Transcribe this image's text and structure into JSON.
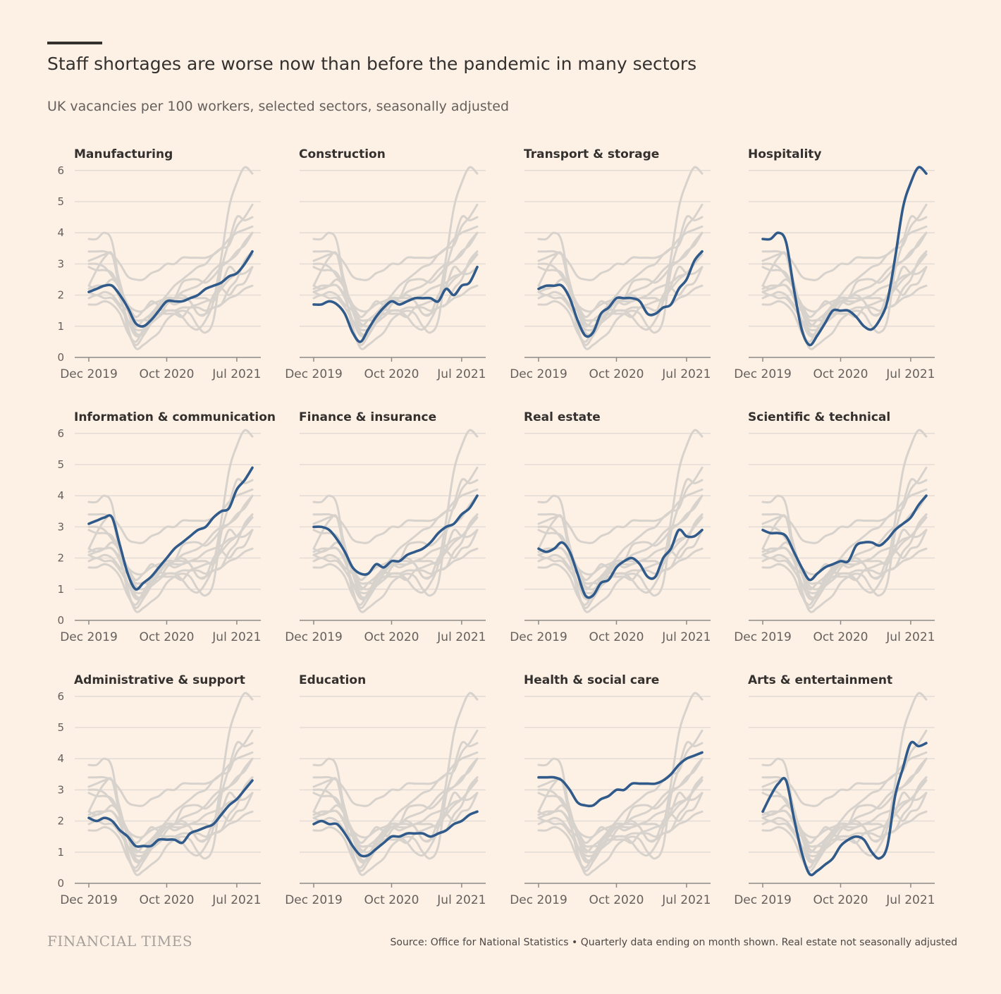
{
  "header": {
    "title": "Staff shortages are worse now than before the pandemic in many sectors",
    "subtitle": "UK vacancies per 100 workers, selected sectors, seasonally adjusted"
  },
  "footer": {
    "brand": "FINANCIAL TIMES",
    "source": "Source: Office for National Statistics • Quarterly data ending on month shown. Real estate not seasonally adjusted"
  },
  "colors": {
    "background": "#fdf1e6",
    "highlight": "#2f5a8a",
    "context": "#d8d2cd",
    "grid": "#e3dcd6",
    "axis": "#8f8a86"
  },
  "chart_data": {
    "type": "line",
    "layout": "small-multiples",
    "ylim": [
      0,
      6
    ],
    "yticks": [
      0,
      1,
      2,
      3,
      4,
      5,
      6
    ],
    "xlim": [
      0,
      21
    ],
    "xticks": [
      {
        "label": "Dec 2019",
        "index": 0
      },
      {
        "label": "Oct 2020",
        "index": 10
      },
      {
        "label": "Jul 2021",
        "index": 19
      }
    ],
    "x_note": "Monthly points Dec 2019 to Sep 2021 (index 0 = Dec 2019)",
    "series": [
      {
        "name": "Manufacturing",
        "values": [
          2.1,
          2.2,
          2.3,
          2.3,
          2.0,
          1.6,
          1.1,
          1.0,
          1.2,
          1.5,
          1.8,
          1.8,
          1.8,
          1.9,
          2.0,
          2.2,
          2.3,
          2.4,
          2.6,
          2.7,
          3.0,
          3.4
        ]
      },
      {
        "name": "Construction",
        "values": [
          1.7,
          1.7,
          1.8,
          1.7,
          1.4,
          0.8,
          0.5,
          0.9,
          1.3,
          1.6,
          1.8,
          1.7,
          1.8,
          1.9,
          1.9,
          1.9,
          1.8,
          2.2,
          2.0,
          2.3,
          2.4,
          2.9
        ]
      },
      {
        "name": "Transport & storage",
        "values": [
          2.2,
          2.3,
          2.3,
          2.3,
          1.9,
          1.2,
          0.7,
          0.8,
          1.4,
          1.6,
          1.9,
          1.9,
          1.9,
          1.8,
          1.4,
          1.4,
          1.6,
          1.7,
          2.2,
          2.5,
          3.1,
          3.4
        ]
      },
      {
        "name": "Hospitality",
        "values": [
          3.8,
          3.8,
          4.0,
          3.7,
          2.2,
          0.9,
          0.4,
          0.7,
          1.1,
          1.5,
          1.5,
          1.5,
          1.3,
          1.0,
          0.9,
          1.2,
          1.8,
          3.2,
          4.8,
          5.6,
          6.1,
          5.9
        ]
      },
      {
        "name": "Information & communication",
        "values": [
          3.1,
          3.2,
          3.3,
          3.3,
          2.4,
          1.5,
          1.0,
          1.2,
          1.4,
          1.7,
          2.0,
          2.3,
          2.5,
          2.7,
          2.9,
          3.0,
          3.3,
          3.5,
          3.6,
          4.2,
          4.5,
          4.9
        ]
      },
      {
        "name": "Finance & insurance",
        "values": [
          3.0,
          3.0,
          2.9,
          2.6,
          2.2,
          1.7,
          1.5,
          1.5,
          1.8,
          1.7,
          1.9,
          1.9,
          2.1,
          2.2,
          2.3,
          2.5,
          2.8,
          3.0,
          3.1,
          3.4,
          3.6,
          4.0
        ]
      },
      {
        "name": "Real estate",
        "values": [
          2.3,
          2.2,
          2.3,
          2.5,
          2.2,
          1.5,
          0.8,
          0.8,
          1.2,
          1.3,
          1.7,
          1.9,
          2.0,
          1.8,
          1.4,
          1.4,
          2.0,
          2.3,
          2.9,
          2.7,
          2.7,
          2.9
        ]
      },
      {
        "name": "Scientific & technical",
        "values": [
          2.9,
          2.8,
          2.8,
          2.7,
          2.2,
          1.7,
          1.3,
          1.5,
          1.7,
          1.8,
          1.9,
          1.9,
          2.4,
          2.5,
          2.5,
          2.4,
          2.6,
          2.9,
          3.1,
          3.3,
          3.7,
          4.0
        ]
      },
      {
        "name": "Administrative & support",
        "values": [
          2.1,
          2.0,
          2.1,
          2.0,
          1.7,
          1.5,
          1.2,
          1.2,
          1.2,
          1.4,
          1.4,
          1.4,
          1.3,
          1.6,
          1.7,
          1.8,
          1.9,
          2.2,
          2.5,
          2.7,
          3.0,
          3.3
        ]
      },
      {
        "name": "Education",
        "values": [
          1.9,
          2.0,
          1.9,
          1.9,
          1.6,
          1.2,
          0.9,
          0.9,
          1.1,
          1.3,
          1.5,
          1.5,
          1.6,
          1.6,
          1.6,
          1.5,
          1.6,
          1.7,
          1.9,
          2.0,
          2.2,
          2.3
        ]
      },
      {
        "name": "Health & social care",
        "values": [
          3.4,
          3.4,
          3.4,
          3.3,
          3.0,
          2.6,
          2.5,
          2.5,
          2.7,
          2.8,
          3.0,
          3.0,
          3.2,
          3.2,
          3.2,
          3.2,
          3.3,
          3.5,
          3.8,
          4.0,
          4.1,
          4.2
        ]
      },
      {
        "name": "Arts & entertainment",
        "values": [
          2.3,
          2.8,
          3.2,
          3.3,
          2.1,
          1.0,
          0.3,
          0.4,
          0.6,
          0.8,
          1.2,
          1.4,
          1.5,
          1.4,
          1.0,
          0.8,
          1.2,
          2.8,
          3.7,
          4.5,
          4.4,
          4.5
        ]
      }
    ]
  }
}
